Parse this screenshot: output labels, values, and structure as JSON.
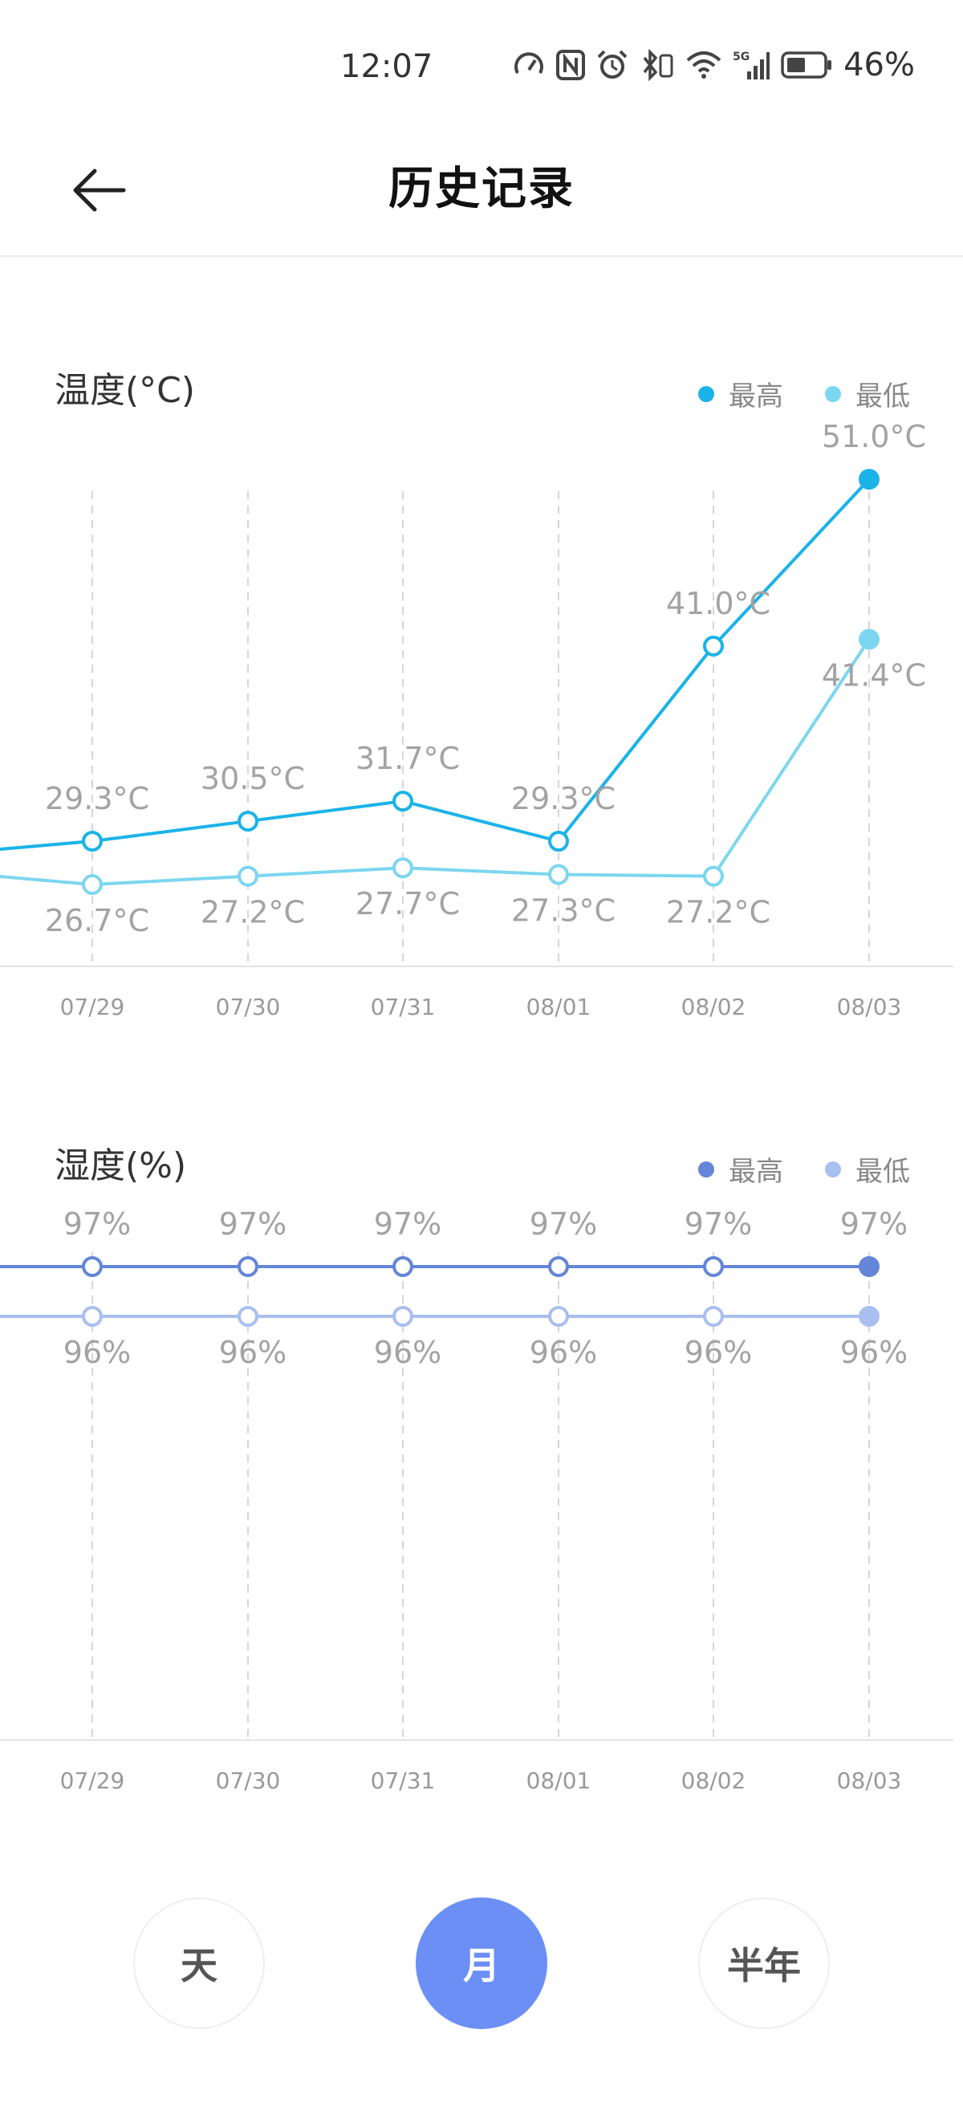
{
  "status_bar": {
    "time": "12:07",
    "battery": "46%",
    "network": "5G",
    "icons": [
      "speedometer-icon",
      "nfc-icon",
      "alarm-icon",
      "bluetooth-icon",
      "wifi-icon",
      "signal-icon",
      "battery-icon"
    ]
  },
  "header": {
    "back_icon": "arrow-left-icon",
    "title": "历史记录"
  },
  "temperature": {
    "title": "温度(°C)",
    "legend": [
      {
        "label": "最高",
        "color": "#1ab3e8"
      },
      {
        "label": "最低",
        "color": "#7dd6f0"
      }
    ]
  },
  "humidity": {
    "title": "湿度(%)",
    "legend": [
      {
        "label": "最高",
        "color": "#6485d8"
      },
      {
        "label": "最低",
        "color": "#a9bff0"
      }
    ]
  },
  "chart_data": [
    {
      "type": "line",
      "categories": [
        "07/29",
        "07/30",
        "07/31",
        "08/01",
        "08/02",
        "08/03"
      ],
      "series": [
        {
          "name": "最高",
          "color": "#1ab3e8",
          "values": [
            29.3,
            30.5,
            31.7,
            29.3,
            41.0,
            51.0
          ],
          "labels": [
            "29.3°C",
            "30.5°C",
            "31.7°C",
            "29.3°C",
            "41.0°C",
            "51.0°C"
          ]
        },
        {
          "name": "最低",
          "color": "#7dd6f0",
          "values": [
            26.7,
            27.2,
            27.7,
            27.3,
            27.2,
            41.4
          ],
          "labels": [
            "26.7°C",
            "27.2°C",
            "27.7°C",
            "27.3°C",
            "27.2°C",
            "41.4°C"
          ]
        }
      ],
      "y_axis_unit": "°C",
      "grid": "vertical-dashed",
      "legend_position": "top-right"
    },
    {
      "type": "line",
      "categories": [
        "07/29",
        "07/30",
        "07/31",
        "08/01",
        "08/02",
        "08/03"
      ],
      "series": [
        {
          "name": "最高",
          "color": "#6485d8",
          "values": [
            97,
            97,
            97,
            97,
            97,
            97
          ],
          "labels": [
            "97%",
            "97%",
            "97%",
            "97%",
            "97%",
            "97%"
          ]
        },
        {
          "name": "最低",
          "color": "#a9bff0",
          "values": [
            96,
            96,
            96,
            96,
            96,
            96
          ],
          "labels": [
            "96%",
            "96%",
            "96%",
            "96%",
            "96%",
            "96%"
          ]
        }
      ],
      "y_axis_unit": "%",
      "grid": "vertical-dashed",
      "legend_position": "top-right"
    }
  ],
  "period_selector": {
    "day": "天",
    "month": "月",
    "half_year": "半年",
    "selected": "month",
    "active_color": "#6b8ff5"
  }
}
